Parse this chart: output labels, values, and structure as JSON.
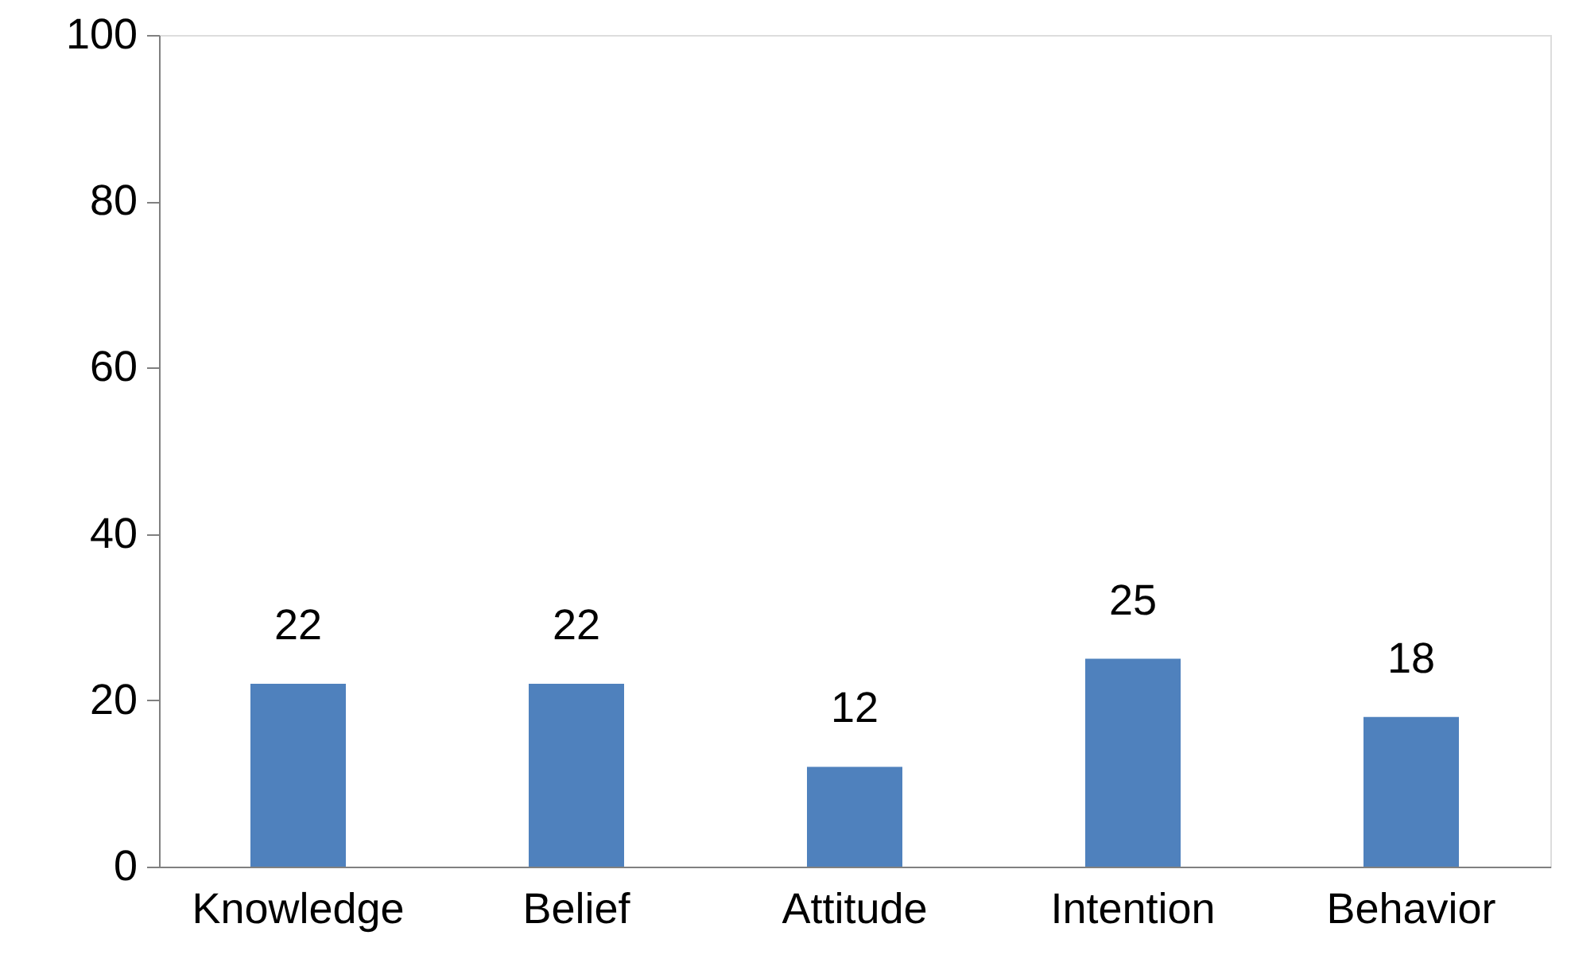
{
  "chart_data": {
    "type": "bar",
    "categories": [
      "Knowledge",
      "Belief",
      "Attitude",
      "Intention",
      "Behavior"
    ],
    "values": [
      22,
      22,
      12,
      25,
      18
    ],
    "color": "#4f81bd",
    "ylim": [
      0,
      100
    ],
    "yticks": [
      0,
      20,
      40,
      60,
      80,
      100
    ],
    "grid": false,
    "data_labels": true
  }
}
